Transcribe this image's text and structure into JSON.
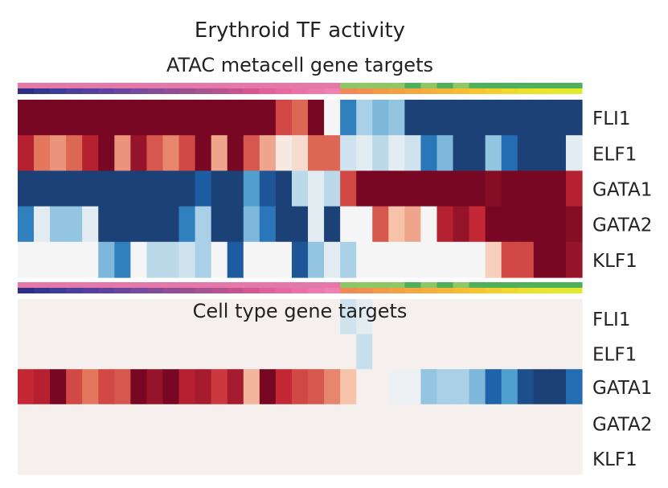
{
  "chart_data": {
    "type": "heatmap",
    "title": "Erythroid TF activity",
    "colormap": "diverging: negative = blue (#1b3a6b), zero = light grey (#f5f5f5), positive = dark red (#67001f)",
    "value_range": [
      -1,
      1
    ],
    "columns": 35,
    "annotation_bar": {
      "top_row_colors": [
        "#e479a9",
        "#e479a9",
        "#e479a9",
        "#e479a9",
        "#e479a9",
        "#e479a9",
        "#e479a9",
        "#e479a9",
        "#e479a9",
        "#e479a9",
        "#e479a9",
        "#e479a9",
        "#e479a9",
        "#e479a9",
        "#e479a9",
        "#e479a9",
        "#e479a9",
        "#e479a9",
        "#e479a9",
        "#e479a9",
        "#8fc765",
        "#8fc765",
        "#8fc765",
        "#8fc765",
        "#4fb05a",
        "#8fc765",
        "#4fb05a",
        "#8fc765",
        "#4fb05a",
        "#4fb05a",
        "#4fb05a",
        "#4fb05a",
        "#4fb05a",
        "#4fb05a",
        "#4fb05a"
      ],
      "bottom_row_colors": [
        "#2e2e86",
        "#353690",
        "#3d3d99",
        "#4a3f9c",
        "#55409f",
        "#60439f",
        "#6b469e",
        "#764a9c",
        "#834c99",
        "#8f4e96",
        "#9b5094",
        "#a85292",
        "#b5528f",
        "#c4548d",
        "#d4588f",
        "#e0629a",
        "#e66aa0",
        "#ea72a6",
        "#ee7aad",
        "#ef82b3",
        "#f08a54",
        "#f1904e",
        "#f29a48",
        "#f3a043",
        "#f4a63f",
        "#f5ad3b",
        "#f5b536",
        "#f6bd33",
        "#f6c530",
        "#f3cf2d",
        "#efd92b",
        "#ebe02b",
        "#e8e52c",
        "#e6e82d",
        "#e3ea2e"
      ]
    },
    "panels": [
      {
        "title": "ATAC metacell gene targets",
        "rows": [
          {
            "name": "FLI1",
            "values": [
              0.95,
              0.95,
              0.95,
              0.95,
              0.95,
              0.95,
              0.95,
              0.95,
              0.95,
              0.95,
              0.95,
              0.95,
              0.95,
              0.95,
              0.95,
              0.95,
              0.6,
              0.5,
              0.95,
              0.0,
              -0.55,
              -0.2,
              -0.3,
              -0.25,
              -0.95,
              -0.95,
              -0.95,
              -0.95,
              -0.95,
              -0.95,
              -0.95,
              -0.95,
              -0.95,
              -0.95,
              -0.95
            ]
          },
          {
            "name": "ELF1",
            "values": [
              0.75,
              0.45,
              0.35,
              0.5,
              0.75,
              0.95,
              0.35,
              0.85,
              0.55,
              0.4,
              0.6,
              0.95,
              0.3,
              0.95,
              0.55,
              0.3,
              0.05,
              0.1,
              0.5,
              0.5,
              -0.1,
              -0.05,
              -0.15,
              -0.05,
              -0.1,
              -0.6,
              -0.3,
              -0.95,
              -0.95,
              -0.25,
              -0.65,
              -0.95,
              -0.95,
              -0.95,
              -0.05
            ]
          },
          {
            "name": "GATA1",
            "values": [
              -0.95,
              -0.95,
              -0.95,
              -0.95,
              -0.95,
              -0.95,
              -0.95,
              -0.95,
              -0.95,
              -0.95,
              -0.95,
              -0.75,
              -0.95,
              -0.95,
              -0.4,
              -0.8,
              -0.95,
              -0.15,
              -0.05,
              -0.15,
              0.6,
              0.95,
              0.95,
              0.95,
              0.95,
              0.95,
              0.95,
              0.95,
              0.95,
              0.9,
              0.95,
              0.95,
              0.95,
              0.95,
              0.75
            ]
          },
          {
            "name": "GATA2",
            "values": [
              -0.55,
              -0.05,
              -0.25,
              -0.25,
              -0.05,
              -0.95,
              -0.95,
              -0.95,
              -0.95,
              -0.95,
              -0.55,
              -0.2,
              -0.95,
              -0.95,
              -0.3,
              -0.6,
              -0.95,
              -0.95,
              -0.05,
              -0.95,
              0.0,
              0.0,
              0.55,
              0.2,
              0.3,
              0.0,
              0.75,
              0.85,
              0.7,
              0.95,
              0.95,
              0.95,
              0.95,
              0.95,
              0.9
            ]
          },
          {
            "name": "KLF1",
            "values": [
              0.0,
              0.0,
              0.0,
              0.0,
              0.0,
              -0.3,
              -0.55,
              0.0,
              -0.15,
              -0.15,
              -0.1,
              -0.2,
              0.0,
              -0.75,
              0.0,
              0.0,
              0.0,
              -0.8,
              -0.25,
              -0.05,
              -0.2,
              0.0,
              0.0,
              0.0,
              0.0,
              0.0,
              0.0,
              0.0,
              0.0,
              0.15,
              0.6,
              0.6,
              0.95,
              0.95,
              0.85
            ]
          }
        ]
      },
      {
        "title": "Cell type gene targets",
        "rows": [
          {
            "name": "FLI1",
            "values": [
              0.02,
              0.02,
              0.02,
              0.02,
              0.02,
              0.02,
              0.02,
              0.02,
              0.02,
              0.02,
              0.02,
              0.02,
              0.02,
              0.02,
              0.02,
              0.02,
              0.02,
              0.02,
              0.02,
              0.02,
              -0.1,
              -0.05,
              0.02,
              0.02,
              0.02,
              0.02,
              0.02,
              0.02,
              0.02,
              0.02,
              0.02,
              0.02,
              0.02,
              0.02,
              0.02
            ]
          },
          {
            "name": "ELF1",
            "values": [
              0.02,
              0.02,
              0.02,
              0.02,
              0.02,
              0.02,
              0.02,
              0.02,
              0.02,
              0.02,
              0.02,
              0.02,
              0.02,
              0.02,
              0.02,
              0.02,
              0.02,
              0.02,
              0.02,
              0.02,
              0.02,
              -0.12,
              0.02,
              0.02,
              0.02,
              0.02,
              0.02,
              0.02,
              0.02,
              0.02,
              0.02,
              0.02,
              0.02,
              0.02,
              0.02
            ]
          },
          {
            "name": "GATA1",
            "values": [
              0.7,
              0.75,
              0.95,
              0.6,
              0.45,
              0.6,
              0.55,
              0.95,
              0.85,
              0.95,
              0.75,
              0.8,
              0.65,
              0.8,
              0.25,
              0.95,
              0.7,
              0.6,
              0.55,
              0.4,
              0.2,
              0.02,
              0.02,
              -0.02,
              -0.02,
              -0.25,
              -0.2,
              -0.2,
              -0.3,
              -0.7,
              -0.4,
              -0.85,
              -0.95,
              -0.95,
              -0.65
            ]
          },
          {
            "name": "GATA2",
            "values": [
              0.02,
              0.02,
              0.02,
              0.02,
              0.02,
              0.02,
              0.02,
              0.02,
              0.02,
              0.02,
              0.02,
              0.02,
              0.02,
              0.02,
              0.02,
              0.02,
              0.02,
              0.02,
              0.02,
              0.02,
              0.02,
              0.02,
              0.02,
              0.02,
              0.02,
              0.02,
              0.02,
              0.02,
              0.02,
              0.02,
              0.02,
              0.02,
              0.02,
              0.02,
              0.02
            ]
          },
          {
            "name": "KLF1",
            "values": [
              0.02,
              0.02,
              0.02,
              0.02,
              0.02,
              0.02,
              0.02,
              0.02,
              0.02,
              0.02,
              0.02,
              0.02,
              0.02,
              0.02,
              0.02,
              0.02,
              0.02,
              0.02,
              0.02,
              0.02,
              0.02,
              0.02,
              0.02,
              0.02,
              0.02,
              0.02,
              0.02,
              0.02,
              0.02,
              0.02,
              0.02,
              0.02,
              0.02,
              0.02,
              0.02
            ]
          }
        ]
      }
    ]
  }
}
